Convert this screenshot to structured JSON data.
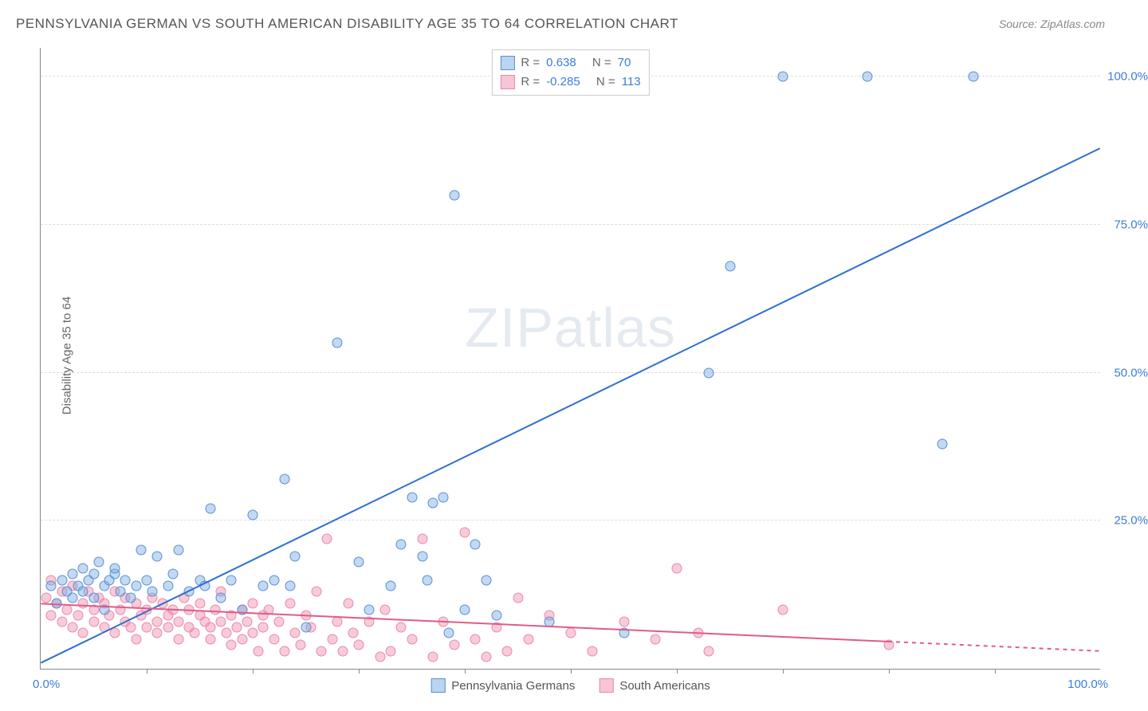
{
  "header": {
    "title": "PENNSYLVANIA GERMAN VS SOUTH AMERICAN DISABILITY AGE 35 TO 64 CORRELATION CHART",
    "source": "Source: ZipAtlas.com"
  },
  "ylabel": "Disability Age 35 to 64",
  "watermark": {
    "part1": "ZIP",
    "part2": "atlas"
  },
  "chart": {
    "type": "scatter",
    "xlim": [
      0,
      100
    ],
    "ylim": [
      0,
      105
    ],
    "yticks": [
      25,
      50,
      75,
      100
    ],
    "ytick_labels": [
      "25.0%",
      "50.0%",
      "75.0%",
      "100.0%"
    ],
    "xtick_positions": [
      10,
      20,
      30,
      40,
      50,
      60,
      70,
      80,
      90
    ],
    "xaxis_left_label": "0.0%",
    "xaxis_right_label": "100.0%",
    "background_color": "#ffffff",
    "grid_color": "#dddddd",
    "colors": {
      "blue_fill": "rgba(120,170,230,0.45)",
      "blue_stroke": "#5a8fd0",
      "pink_fill": "rgba(240,140,170,0.45)",
      "pink_stroke": "#e88aa8",
      "axis_value": "#3b7dd8",
      "trend_blue": "#2e6fd0",
      "trend_pink": "#e05b88"
    },
    "marker_radius": 6.5,
    "trend_lines": {
      "blue": {
        "x1": 0,
        "y1": 1,
        "x2": 100,
        "y2": 88,
        "width": 2,
        "dashed_from_x": null
      },
      "pink": {
        "x1": 0,
        "y1": 11,
        "x2": 100,
        "y2": 3,
        "width": 2,
        "dashed_from_x": 80
      }
    },
    "legend_top": [
      {
        "swatch": "blue",
        "r_label": "R =",
        "r_value": "0.638",
        "n_label": "N =",
        "n_value": "70"
      },
      {
        "swatch": "pink",
        "r_label": "R =",
        "r_value": "-0.285",
        "n_label": "N =",
        "n_value": "113"
      }
    ],
    "legend_bottom": [
      {
        "swatch": "blue",
        "label": "Pennsylvania Germans"
      },
      {
        "swatch": "pink",
        "label": "South Americans"
      }
    ],
    "series": {
      "blue": [
        [
          1,
          14
        ],
        [
          1.5,
          11
        ],
        [
          2,
          15
        ],
        [
          2.5,
          13
        ],
        [
          3,
          16
        ],
        [
          3,
          12
        ],
        [
          3.5,
          14
        ],
        [
          4,
          17
        ],
        [
          4,
          13
        ],
        [
          4.5,
          15
        ],
        [
          5,
          16
        ],
        [
          5,
          12
        ],
        [
          5.5,
          18
        ],
        [
          6,
          14
        ],
        [
          6,
          10
        ],
        [
          6.5,
          15
        ],
        [
          7,
          16
        ],
        [
          7,
          17
        ],
        [
          7.5,
          13
        ],
        [
          8,
          15
        ],
        [
          8.5,
          12
        ],
        [
          9,
          14
        ],
        [
          9.5,
          20
        ],
        [
          10,
          15
        ],
        [
          10.5,
          13
        ],
        [
          11,
          19
        ],
        [
          12,
          14
        ],
        [
          12.5,
          16
        ],
        [
          13,
          20
        ],
        [
          14,
          13
        ],
        [
          15,
          15
        ],
        [
          15.5,
          14
        ],
        [
          16,
          27
        ],
        [
          17,
          12
        ],
        [
          18,
          15
        ],
        [
          19,
          10
        ],
        [
          20,
          26
        ],
        [
          21,
          14
        ],
        [
          22,
          15
        ],
        [
          23,
          32
        ],
        [
          23.5,
          14
        ],
        [
          24,
          19
        ],
        [
          25,
          7
        ],
        [
          28,
          55
        ],
        [
          30,
          18
        ],
        [
          31,
          10
        ],
        [
          33,
          14
        ],
        [
          34,
          21
        ],
        [
          35,
          29
        ],
        [
          36,
          19
        ],
        [
          36.5,
          15
        ],
        [
          37,
          28
        ],
        [
          38,
          29
        ],
        [
          38.5,
          6
        ],
        [
          39,
          80
        ],
        [
          40,
          10
        ],
        [
          41,
          21
        ],
        [
          42,
          15
        ],
        [
          43,
          9
        ],
        [
          48,
          8
        ],
        [
          55,
          6
        ],
        [
          63,
          50
        ],
        [
          65,
          68
        ],
        [
          70,
          100
        ],
        [
          78,
          100
        ],
        [
          85,
          38
        ],
        [
          88,
          100
        ]
      ],
      "pink": [
        [
          0.5,
          12
        ],
        [
          1,
          15
        ],
        [
          1,
          9
        ],
        [
          1.5,
          11
        ],
        [
          2,
          13
        ],
        [
          2,
          8
        ],
        [
          2.5,
          10
        ],
        [
          3,
          14
        ],
        [
          3,
          7
        ],
        [
          3.5,
          9
        ],
        [
          4,
          11
        ],
        [
          4,
          6
        ],
        [
          4.5,
          13
        ],
        [
          5,
          8
        ],
        [
          5,
          10
        ],
        [
          5.5,
          12
        ],
        [
          6,
          7
        ],
        [
          6,
          11
        ],
        [
          6.5,
          9
        ],
        [
          7,
          13
        ],
        [
          7,
          6
        ],
        [
          7.5,
          10
        ],
        [
          8,
          8
        ],
        [
          8,
          12
        ],
        [
          8.5,
          7
        ],
        [
          9,
          11
        ],
        [
          9,
          5
        ],
        [
          9.5,
          9
        ],
        [
          10,
          10
        ],
        [
          10,
          7
        ],
        [
          10.5,
          12
        ],
        [
          11,
          8
        ],
        [
          11,
          6
        ],
        [
          11.5,
          11
        ],
        [
          12,
          9
        ],
        [
          12,
          7
        ],
        [
          12.5,
          10
        ],
        [
          13,
          8
        ],
        [
          13,
          5
        ],
        [
          13.5,
          12
        ],
        [
          14,
          7
        ],
        [
          14,
          10
        ],
        [
          14.5,
          6
        ],
        [
          15,
          9
        ],
        [
          15,
          11
        ],
        [
          15.5,
          8
        ],
        [
          16,
          7
        ],
        [
          16,
          5
        ],
        [
          16.5,
          10
        ],
        [
          17,
          13
        ],
        [
          17,
          8
        ],
        [
          17.5,
          6
        ],
        [
          18,
          9
        ],
        [
          18,
          4
        ],
        [
          18.5,
          7
        ],
        [
          19,
          10
        ],
        [
          19,
          5
        ],
        [
          19.5,
          8
        ],
        [
          20,
          11
        ],
        [
          20,
          6
        ],
        [
          20.5,
          3
        ],
        [
          21,
          9
        ],
        [
          21,
          7
        ],
        [
          21.5,
          10
        ],
        [
          22,
          5
        ],
        [
          22.5,
          8
        ],
        [
          23,
          3
        ],
        [
          23.5,
          11
        ],
        [
          24,
          6
        ],
        [
          24.5,
          4
        ],
        [
          25,
          9
        ],
        [
          25.5,
          7
        ],
        [
          26,
          13
        ],
        [
          26.5,
          3
        ],
        [
          27,
          22
        ],
        [
          27.5,
          5
        ],
        [
          28,
          8
        ],
        [
          28.5,
          3
        ],
        [
          29,
          11
        ],
        [
          29.5,
          6
        ],
        [
          30,
          4
        ],
        [
          31,
          8
        ],
        [
          32,
          2
        ],
        [
          32.5,
          10
        ],
        [
          33,
          3
        ],
        [
          34,
          7
        ],
        [
          35,
          5
        ],
        [
          36,
          22
        ],
        [
          37,
          2
        ],
        [
          38,
          8
        ],
        [
          39,
          4
        ],
        [
          40,
          23
        ],
        [
          41,
          5
        ],
        [
          42,
          2
        ],
        [
          43,
          7
        ],
        [
          44,
          3
        ],
        [
          45,
          12
        ],
        [
          46,
          5
        ],
        [
          48,
          9
        ],
        [
          50,
          6
        ],
        [
          52,
          3
        ],
        [
          55,
          8
        ],
        [
          58,
          5
        ],
        [
          60,
          17
        ],
        [
          62,
          6
        ],
        [
          63,
          3
        ],
        [
          70,
          10
        ],
        [
          80,
          4
        ]
      ]
    }
  }
}
